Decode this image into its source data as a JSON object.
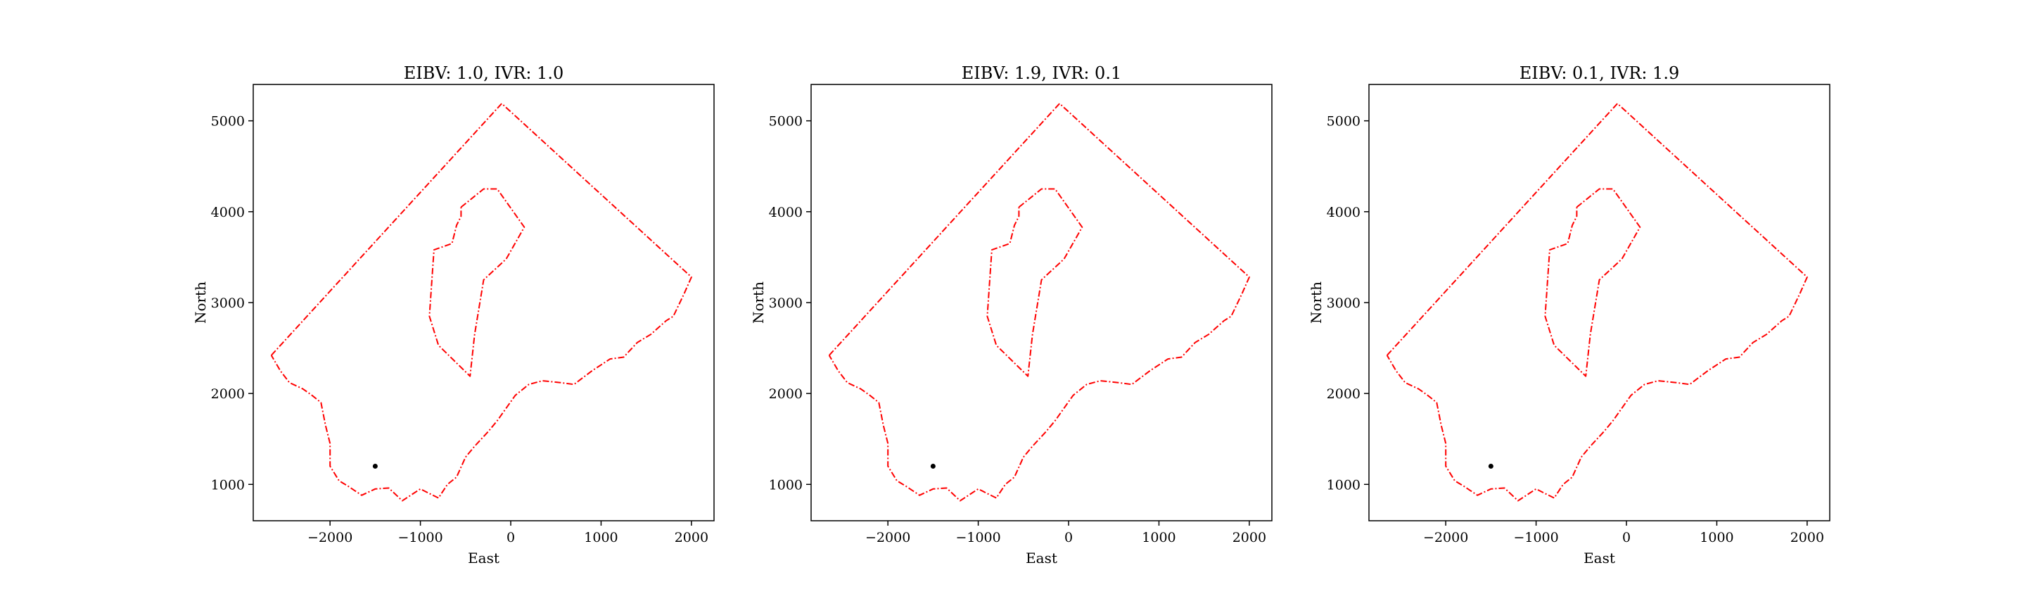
{
  "chart_data": [
    {
      "type": "line",
      "title": "EIBV: 1.0, IVR: 1.0",
      "xlabel": "East",
      "ylabel": "North",
      "xlim": [
        -2850,
        2250
      ],
      "ylim": [
        600,
        5400
      ],
      "xticks": [
        -2000,
        -1000,
        0,
        1000,
        2000
      ],
      "xtick_labels": [
        "−2000",
        "−1000",
        "0",
        "1000",
        "2000"
      ],
      "yticks": [
        1000,
        2000,
        3000,
        4000,
        5000
      ],
      "ytick_labels": [
        "1000",
        "2000",
        "3000",
        "4000",
        "5000"
      ],
      "grid": false,
      "series": [
        {
          "style": "dashdot",
          "color": "#ff0000",
          "x": [
            -2650,
            -100,
            2000,
            1920,
            1800,
            1720,
            1550,
            1400,
            1250,
            1100,
            900,
            700,
            550,
            350,
            200,
            50,
            -150,
            -250,
            -400,
            -500,
            -600,
            -700,
            -800,
            -900,
            -1000,
            -1200,
            -1350,
            -1500,
            -1650,
            -1800,
            -1900,
            -2000,
            -2000,
            -2050,
            -2100,
            -2200,
            -2300,
            -2450,
            -2550,
            -2650
          ],
          "y": [
            2420,
            5190,
            3280,
            3100,
            2850,
            2800,
            2650,
            2560,
            2400,
            2380,
            2250,
            2100,
            2120,
            2140,
            2100,
            1980,
            1700,
            1580,
            1420,
            1300,
            1080,
            1000,
            850,
            900,
            950,
            820,
            960,
            950,
            880,
            980,
            1040,
            1200,
            1450,
            1650,
            1900,
            1980,
            2050,
            2120,
            2250,
            2420
          ]
        },
        {
          "style": "dashdot",
          "color": "#ff0000",
          "x": [
            -550,
            -300,
            -150,
            150,
            -50,
            -300,
            -400,
            -450,
            -800,
            -900,
            -850,
            -650,
            -600,
            -550,
            -550
          ],
          "y": [
            4050,
            4250,
            4250,
            3830,
            3480,
            3250,
            2650,
            2190,
            2530,
            2850,
            3580,
            3650,
            3850,
            3950,
            4050
          ]
        }
      ],
      "points": [
        {
          "x": -1500,
          "y": 1200,
          "color": "#000000"
        }
      ]
    },
    {
      "type": "line",
      "title": "EIBV: 1.9, IVR: 0.1",
      "xlabel": "East",
      "ylabel": "North",
      "xlim": [
        -2850,
        2250
      ],
      "ylim": [
        600,
        5400
      ],
      "xticks": [
        -2000,
        -1000,
        0,
        1000,
        2000
      ],
      "xtick_labels": [
        "−2000",
        "−1000",
        "0",
        "1000",
        "2000"
      ],
      "yticks": [
        1000,
        2000,
        3000,
        4000,
        5000
      ],
      "ytick_labels": [
        "1000",
        "2000",
        "3000",
        "4000",
        "5000"
      ],
      "grid": false,
      "series": [
        {
          "style": "dashdot",
          "color": "#ff0000",
          "x": [
            -2650,
            -100,
            2000,
            1920,
            1800,
            1720,
            1550,
            1400,
            1250,
            1100,
            900,
            700,
            550,
            350,
            200,
            50,
            -150,
            -250,
            -400,
            -500,
            -600,
            -700,
            -800,
            -900,
            -1000,
            -1200,
            -1350,
            -1500,
            -1650,
            -1800,
            -1900,
            -2000,
            -2000,
            -2050,
            -2100,
            -2200,
            -2300,
            -2450,
            -2550,
            -2650
          ],
          "y": [
            2420,
            5190,
            3280,
            3100,
            2850,
            2800,
            2650,
            2560,
            2400,
            2380,
            2250,
            2100,
            2120,
            2140,
            2100,
            1980,
            1700,
            1580,
            1420,
            1300,
            1080,
            1000,
            850,
            900,
            950,
            820,
            960,
            950,
            880,
            980,
            1040,
            1200,
            1450,
            1650,
            1900,
            1980,
            2050,
            2120,
            2250,
            2420
          ]
        },
        {
          "style": "dashdot",
          "color": "#ff0000",
          "x": [
            -550,
            -300,
            -150,
            150,
            -50,
            -300,
            -400,
            -450,
            -800,
            -900,
            -850,
            -650,
            -600,
            -550,
            -550
          ],
          "y": [
            4050,
            4250,
            4250,
            3830,
            3480,
            3250,
            2650,
            2190,
            2530,
            2850,
            3580,
            3650,
            3850,
            3950,
            4050
          ]
        }
      ],
      "points": [
        {
          "x": -1500,
          "y": 1200,
          "color": "#000000"
        }
      ]
    },
    {
      "type": "line",
      "title": "EIBV: 0.1, IVR: 1.9",
      "xlabel": "East",
      "ylabel": "North",
      "xlim": [
        -2850,
        2250
      ],
      "ylim": [
        600,
        5400
      ],
      "xticks": [
        -2000,
        -1000,
        0,
        1000,
        2000
      ],
      "xtick_labels": [
        "−2000",
        "−1000",
        "0",
        "1000",
        "2000"
      ],
      "yticks": [
        1000,
        2000,
        3000,
        4000,
        5000
      ],
      "ytick_labels": [
        "1000",
        "2000",
        "3000",
        "4000",
        "5000"
      ],
      "grid": false,
      "series": [
        {
          "style": "dashdot",
          "color": "#ff0000",
          "x": [
            -2650,
            -100,
            2000,
            1920,
            1800,
            1720,
            1550,
            1400,
            1250,
            1100,
            900,
            700,
            550,
            350,
            200,
            50,
            -150,
            -250,
            -400,
            -500,
            -600,
            -700,
            -800,
            -900,
            -1000,
            -1200,
            -1350,
            -1500,
            -1650,
            -1800,
            -1900,
            -2000,
            -2000,
            -2050,
            -2100,
            -2200,
            -2300,
            -2450,
            -2550,
            -2650
          ],
          "y": [
            2420,
            5190,
            3280,
            3100,
            2850,
            2800,
            2650,
            2560,
            2400,
            2380,
            2250,
            2100,
            2120,
            2140,
            2100,
            1980,
            1700,
            1580,
            1420,
            1300,
            1080,
            1000,
            850,
            900,
            950,
            820,
            960,
            950,
            880,
            980,
            1040,
            1200,
            1450,
            1650,
            1900,
            1980,
            2050,
            2120,
            2250,
            2420
          ]
        },
        {
          "style": "dashdot",
          "color": "#ff0000",
          "x": [
            -550,
            -300,
            -150,
            150,
            -50,
            -300,
            -400,
            -450,
            -800,
            -900,
            -850,
            -650,
            -600,
            -550,
            -550
          ],
          "y": [
            4050,
            4250,
            4250,
            3830,
            3480,
            3250,
            2650,
            2190,
            2530,
            2850,
            3580,
            3650,
            3850,
            3950,
            4050
          ]
        }
      ],
      "points": [
        {
          "x": -1500,
          "y": 1200,
          "color": "#000000"
        }
      ]
    }
  ]
}
